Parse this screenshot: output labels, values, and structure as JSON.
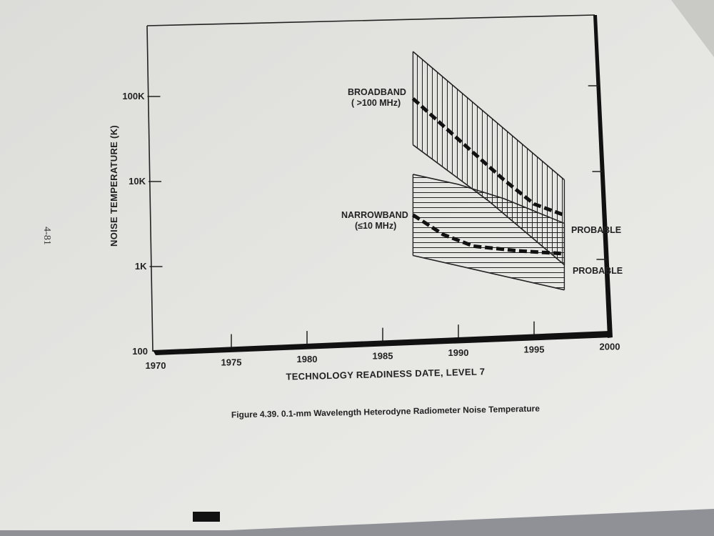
{
  "page": {
    "page_number": "4-81"
  },
  "figure": {
    "caption": "Figure 4.39.  0.1-mm Wavelength Heterodyne Radiometer Noise Temperature"
  },
  "chart_data": {
    "type": "area",
    "title": "",
    "xlabel": "TECHNOLOGY READINESS DATE, LEVEL 7",
    "ylabel": "NOISE TEMPERATURE (K)",
    "x_scale": "linear",
    "y_scale": "log",
    "xlim": [
      1970,
      2000
    ],
    "ylim": [
      100,
      400000
    ],
    "x_ticks": [
      {
        "value": 1970,
        "label": "1970"
      },
      {
        "value": 1975,
        "label": "1975"
      },
      {
        "value": 1980,
        "label": "1980"
      },
      {
        "value": 1985,
        "label": "1985"
      },
      {
        "value": 1990,
        "label": "1990"
      },
      {
        "value": 1995,
        "label": "1995"
      },
      {
        "value": 2000,
        "label": "2000"
      }
    ],
    "y_ticks": [
      {
        "value": 100,
        "label": "100"
      },
      {
        "value": 1000,
        "label": "1K"
      },
      {
        "value": 10000,
        "label": "10K"
      },
      {
        "value": 100000,
        "label": "100K"
      }
    ],
    "grid": false,
    "legend": "none",
    "series": [
      {
        "name": "BROADBAND",
        "sublabel": "( >100 MHz)",
        "band_upper": [
          [
            1987,
            250000
          ],
          [
            1997,
            6500
          ]
        ],
        "band_lower": [
          [
            1987,
            20000
          ],
          [
            1992,
            4000
          ],
          [
            1997,
            650
          ]
        ],
        "probable": [
          [
            1987,
            70000
          ],
          [
            1990,
            22000
          ],
          [
            1993,
            7000
          ],
          [
            1995,
            3500
          ],
          [
            1997,
            2500
          ]
        ],
        "probable_label": "PROBABLE",
        "hatch": "vertical"
      },
      {
        "name": "NARROWBAND",
        "sublabel": "(≤10 MHz)",
        "band_upper": [
          [
            1987,
            9000
          ],
          [
            1990,
            6500
          ],
          [
            1993,
            4200
          ],
          [
            1997,
            2000
          ]
        ],
        "band_lower": [
          [
            1987,
            1000
          ],
          [
            1997,
            330
          ]
        ],
        "probable": [
          [
            1987,
            3000
          ],
          [
            1989,
            1700
          ],
          [
            1991,
            1200
          ],
          [
            1994,
            1000
          ],
          [
            1997,
            880
          ]
        ],
        "probable_label": "PROBABLE",
        "hatch": "horizontal"
      }
    ]
  }
}
